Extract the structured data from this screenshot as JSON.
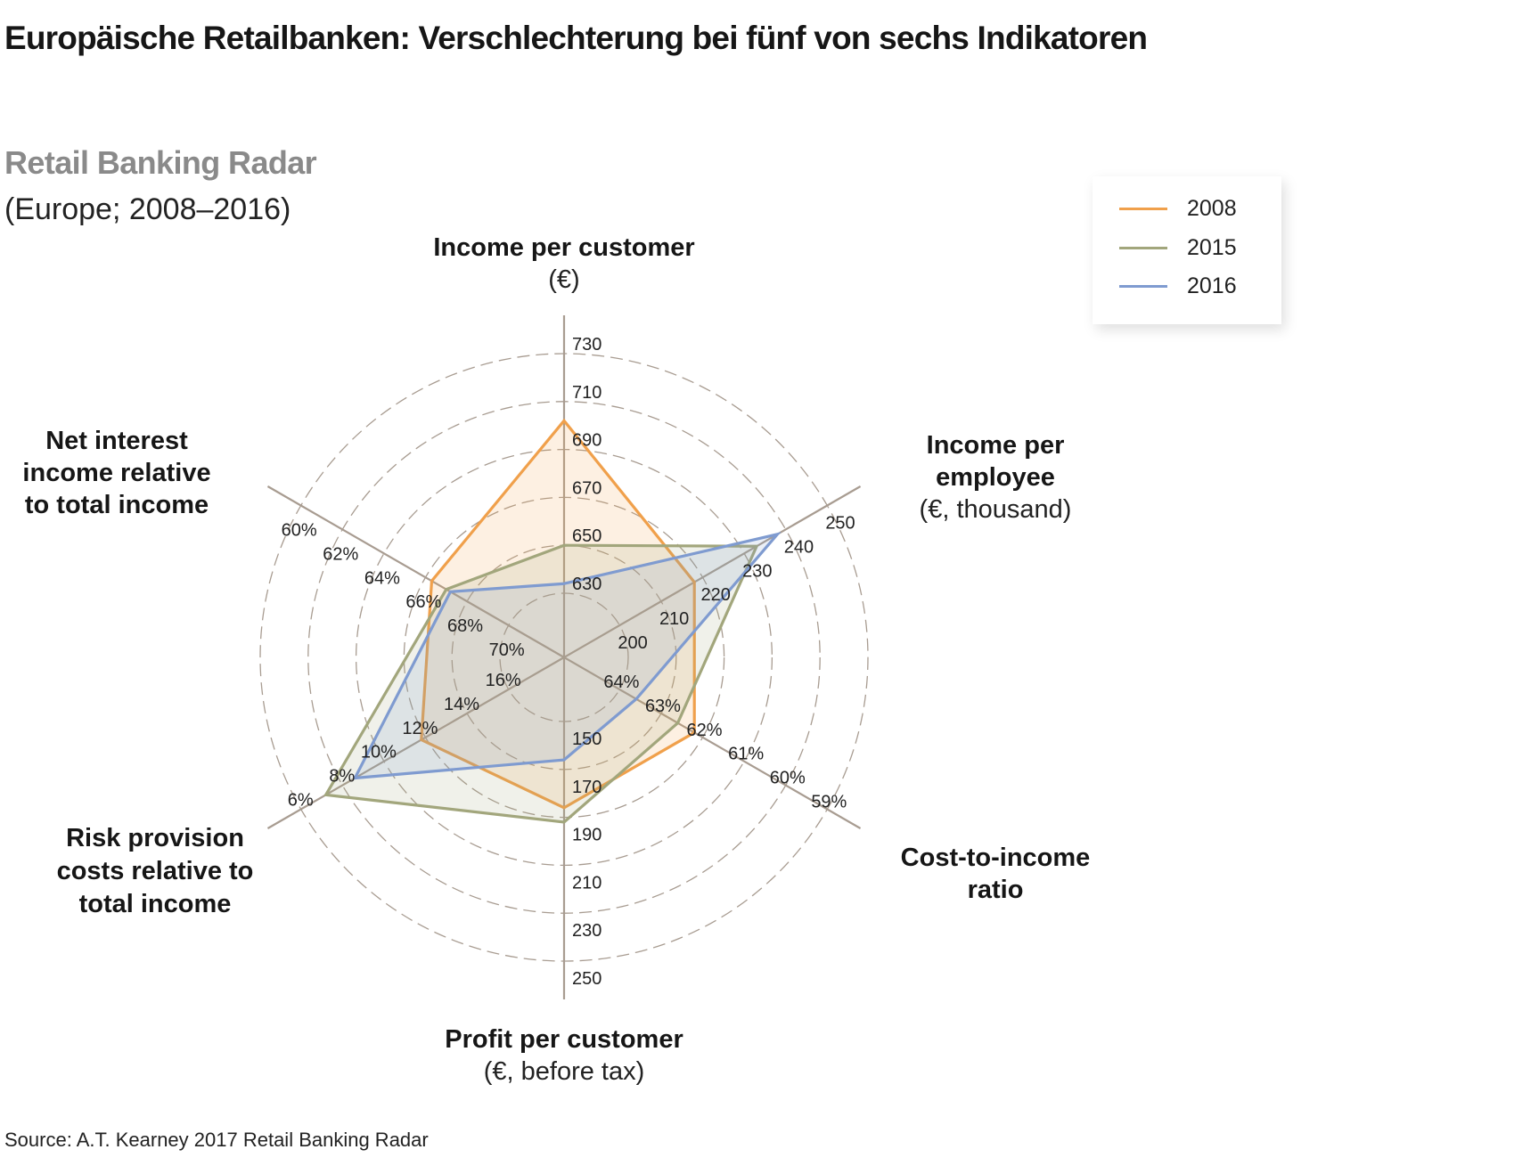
{
  "header": {
    "title": "Europäische Retailbanken: Verschlechterung bei fünf von sechs Indikatoren",
    "subtitle": "Retail Banking Radar",
    "subtitle2": "(Europe; 2008–2016)"
  },
  "legend": [
    {
      "label": "2008",
      "color": "#f0a04b"
    },
    {
      "label": "2015",
      "color": "#a2a67c"
    },
    {
      "label": "2016",
      "color": "#7f9bd0"
    }
  ],
  "source": "Source: A.T. Kearney 2017 Retail Banking Radar",
  "chart_data": {
    "type": "radar",
    "title": "Retail Banking Radar",
    "subtitle": "(Europe; 2008–2016)",
    "legend_position": "top-right",
    "grid": true,
    "axes": [
      {
        "key": "income_per_customer",
        "title": [
          "Income per customer"
        ],
        "subtitle": [
          "(€)"
        ],
        "ticks": [
          "630",
          "650",
          "670",
          "690",
          "710",
          "730"
        ],
        "tick_values": [
          630,
          650,
          670,
          690,
          710,
          730
        ]
      },
      {
        "key": "income_per_employee",
        "title": [
          "Income per",
          "employee"
        ],
        "subtitle": [
          "(€, thousand)"
        ],
        "ticks": [
          "200",
          "210",
          "220",
          "230",
          "240",
          "250"
        ],
        "tick_values": [
          200,
          210,
          220,
          230,
          240,
          250
        ]
      },
      {
        "key": "cost_to_income",
        "title": [
          "Cost-to-income",
          "ratio"
        ],
        "subtitle": [],
        "ticks": [
          "64%",
          "63%",
          "62%",
          "61%",
          "60%",
          "59%"
        ],
        "tick_values": [
          64,
          63,
          62,
          61,
          60,
          59
        ]
      },
      {
        "key": "profit_per_customer",
        "title": [
          "Profit per customer"
        ],
        "subtitle": [
          "(€, before tax)"
        ],
        "ticks": [
          "150",
          "170",
          "190",
          "210",
          "230",
          "250"
        ],
        "tick_values": [
          150,
          170,
          190,
          210,
          230,
          250
        ]
      },
      {
        "key": "risk_provision",
        "title": [
          "Risk provision",
          "costs relative to",
          "total income"
        ],
        "subtitle": [],
        "ticks": [
          "16%",
          "14%",
          "12%",
          "10%",
          "8%",
          "6%"
        ],
        "tick_values": [
          16,
          14,
          12,
          10,
          8,
          6
        ]
      },
      {
        "key": "net_interest_income",
        "title": [
          "Net interest",
          "income relative",
          "to total income"
        ],
        "subtitle": [],
        "ticks": [
          "70%",
          "68%",
          "66%",
          "64%",
          "62%",
          "60%"
        ],
        "tick_values": [
          70,
          68,
          66,
          64,
          62,
          60
        ]
      }
    ],
    "series": [
      {
        "name": "2008",
        "color": "#f0a04b",
        "values": [
          702,
          218,
          62.2,
          186,
          11.8,
          66.3
        ]
      },
      {
        "name": "2015",
        "color": "#a2a67c",
        "values": [
          650,
          233,
          62.6,
          192,
          7.2,
          67.0
        ]
      },
      {
        "name": "2016",
        "color": "#7f9bd0",
        "values": [
          634,
          238,
          63.6,
          166,
          8.6,
          67.2
        ]
      }
    ]
  }
}
